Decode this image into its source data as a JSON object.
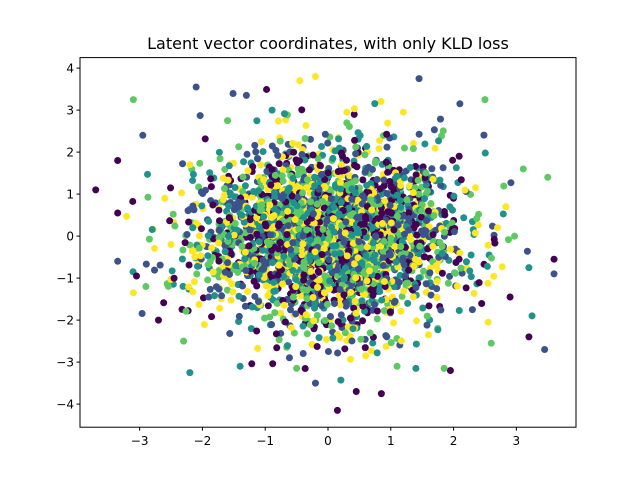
{
  "chart_data": {
    "type": "scatter",
    "title": "Latent vector coordinates, with only KLD loss",
    "xlabel": "",
    "ylabel": "",
    "xlim": [
      -3.95,
      3.95
    ],
    "ylim": [
      -4.55,
      4.25
    ],
    "xticks": [
      -3,
      -2,
      -1,
      0,
      1,
      2,
      3
    ],
    "yticks": [
      -4,
      -3,
      -2,
      -1,
      0,
      1,
      2,
      3,
      4
    ],
    "grid": false,
    "legend": "none",
    "colormap": [
      "#440154",
      "#3b528b",
      "#21918c",
      "#5ec962",
      "#fde725"
    ],
    "marker_size": 6,
    "point_count": 3000,
    "distribution": "standard-normal",
    "points": [
      {
        "x": 0.15,
        "y": -4.15,
        "c": 0
      },
      {
        "x": 0.45,
        "y": -3.7,
        "c": 0
      },
      {
        "x": -0.2,
        "y": -3.5,
        "c": 1
      },
      {
        "x": 1.95,
        "y": -3.2,
        "c": 0
      },
      {
        "x": -2.2,
        "y": -3.25,
        "c": 2
      },
      {
        "x": 1.4,
        "y": -3.15,
        "c": 2
      },
      {
        "x": 0.85,
        "y": -3.75,
        "c": 0
      },
      {
        "x": 1.85,
        "y": -3.15,
        "c": 3
      },
      {
        "x": 1.1,
        "y": -3.1,
        "c": 3
      },
      {
        "x": 3.2,
        "y": -2.4,
        "c": 0
      },
      {
        "x": 3.45,
        "y": -2.7,
        "c": 1
      },
      {
        "x": 3.25,
        "y": -1.9,
        "c": 2
      },
      {
        "x": 2.55,
        "y": -2.05,
        "c": 4
      },
      {
        "x": -2.3,
        "y": -2.5,
        "c": 3
      },
      {
        "x": -2.7,
        "y": -2.0,
        "c": 0
      },
      {
        "x": -3.1,
        "y": -1.35,
        "c": 4
      },
      {
        "x": -2.9,
        "y": -1.2,
        "c": 3
      },
      {
        "x": -3.35,
        "y": -0.6,
        "c": 1
      },
      {
        "x": -3.05,
        "y": -0.95,
        "c": 0
      },
      {
        "x": -3.7,
        "y": 1.1,
        "c": 0
      },
      {
        "x": -3.35,
        "y": 0.55,
        "c": 0
      },
      {
        "x": -3.35,
        "y": 1.8,
        "c": 0
      },
      {
        "x": -3.1,
        "y": 3.25,
        "c": 3
      },
      {
        "x": -2.95,
        "y": 2.4,
        "c": 1
      },
      {
        "x": -2.1,
        "y": 3.55,
        "c": 1
      },
      {
        "x": -0.45,
        "y": 3.7,
        "c": 4
      },
      {
        "x": -0.2,
        "y": 3.8,
        "c": 4
      },
      {
        "x": 1.45,
        "y": 3.75,
        "c": 1
      },
      {
        "x": 2.1,
        "y": 3.15,
        "c": 1
      },
      {
        "x": 2.5,
        "y": 3.25,
        "c": 3
      },
      {
        "x": 3.5,
        "y": 1.4,
        "c": 3
      },
      {
        "x": 3.6,
        "y": -0.55,
        "c": 0
      },
      {
        "x": 3.6,
        "y": -0.9,
        "c": 1
      },
      {
        "x": 3.2,
        "y": -0.75,
        "c": 2
      },
      {
        "x": 2.6,
        "y": -2.55,
        "c": 3
      },
      {
        "x": -1.3,
        "y": 3.35,
        "c": 1
      },
      {
        "x": -1.6,
        "y": 2.75,
        "c": 3
      },
      {
        "x": 0.3,
        "y": 2.95,
        "c": 4
      },
      {
        "x": 1.2,
        "y": 2.95,
        "c": 4
      },
      {
        "x": -1.4,
        "y": -3.1,
        "c": 2
      },
      {
        "x": -0.5,
        "y": -3.15,
        "c": 3
      },
      {
        "x": 0.6,
        "y": -2.85,
        "c": 4
      },
      {
        "x": 1.6,
        "y": -2.35,
        "c": 4
      },
      {
        "x": 2.3,
        "y": -1.75,
        "c": 1
      },
      {
        "x": 2.9,
        "y": -1.45,
        "c": 0
      },
      {
        "x": 2.35,
        "y": 1.15,
        "c": 4
      },
      {
        "x": 2.7,
        "y": 0.2,
        "c": 4
      },
      {
        "x": -2.6,
        "y": 0.9,
        "c": 4
      },
      {
        "x": -2.2,
        "y": 1.7,
        "c": 4
      },
      {
        "x": -2.5,
        "y": -0.2,
        "c": 4
      }
    ]
  }
}
